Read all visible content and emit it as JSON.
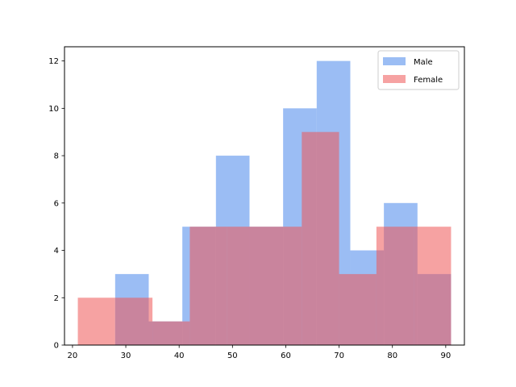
{
  "chart_data": {
    "type": "bar",
    "subtype": "overlapping-histogram",
    "title": "",
    "xlabel": "",
    "ylabel": "",
    "xlim": [
      18.5,
      93.5
    ],
    "ylim": [
      0,
      12.6
    ],
    "xticks": [
      20,
      30,
      40,
      50,
      60,
      70,
      80,
      90
    ],
    "yticks": [
      0,
      2,
      4,
      6,
      8,
      10,
      12
    ],
    "grid": false,
    "legend_position": "top-right",
    "series": [
      {
        "name": "Male",
        "color": "#6699ee",
        "opacity": 0.65,
        "bins": [
          {
            "x0": 28.0,
            "x1": 34.3,
            "value": 3
          },
          {
            "x0": 34.3,
            "x1": 40.6,
            "value": 1
          },
          {
            "x0": 40.6,
            "x1": 46.9,
            "value": 5
          },
          {
            "x0": 46.9,
            "x1": 53.2,
            "value": 8
          },
          {
            "x0": 53.2,
            "x1": 59.5,
            "value": 5
          },
          {
            "x0": 59.5,
            "x1": 65.8,
            "value": 10
          },
          {
            "x0": 65.8,
            "x1": 72.1,
            "value": 12
          },
          {
            "x0": 72.1,
            "x1": 78.4,
            "value": 4
          },
          {
            "x0": 78.4,
            "x1": 84.7,
            "value": 6
          },
          {
            "x0": 84.7,
            "x1": 91.0,
            "value": 3
          }
        ]
      },
      {
        "name": "Female",
        "color": "#ee5555",
        "opacity": 0.55,
        "bins": [
          {
            "x0": 21.0,
            "x1": 28.0,
            "value": 2
          },
          {
            "x0": 28.0,
            "x1": 35.0,
            "value": 2
          },
          {
            "x0": 35.0,
            "x1": 42.0,
            "value": 1
          },
          {
            "x0": 42.0,
            "x1": 49.0,
            "value": 5
          },
          {
            "x0": 49.0,
            "x1": 56.0,
            "value": 5
          },
          {
            "x0": 56.0,
            "x1": 63.0,
            "value": 5
          },
          {
            "x0": 63.0,
            "x1": 70.0,
            "value": 9
          },
          {
            "x0": 70.0,
            "x1": 77.0,
            "value": 3
          },
          {
            "x0": 77.0,
            "x1": 84.0,
            "value": 5
          },
          {
            "x0": 84.0,
            "x1": 91.0,
            "value": 5
          }
        ]
      }
    ]
  }
}
